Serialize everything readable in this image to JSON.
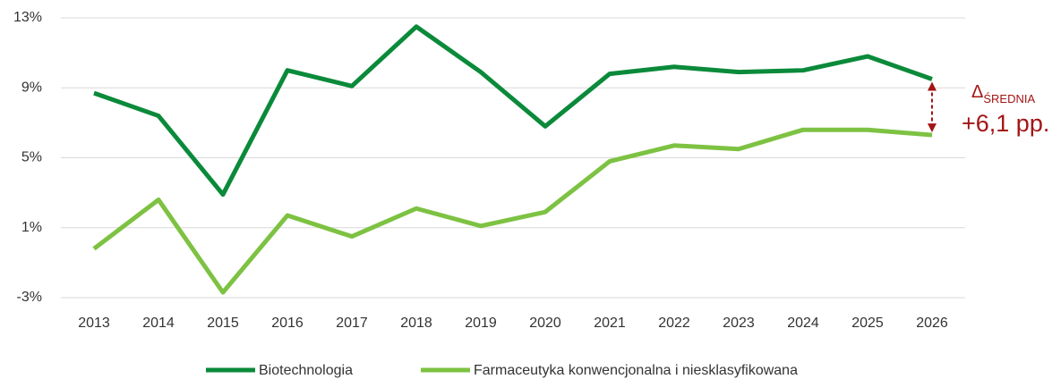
{
  "chart_data": {
    "type": "line",
    "categories": [
      "2013",
      "2014",
      "2015",
      "2016",
      "2017",
      "2018",
      "2019",
      "2020",
      "2021",
      "2022",
      "2023",
      "2024",
      "2025",
      "2026"
    ],
    "series": [
      {
        "name": "Biotechnologia",
        "color": "#0a8a3a",
        "values": [
          8.7,
          7.4,
          2.9,
          10.0,
          9.1,
          12.5,
          9.9,
          6.8,
          9.8,
          10.2,
          9.9,
          10.0,
          10.8,
          9.5
        ]
      },
      {
        "name": "Farmaceutyka konwencjonalna i niesklasyfikowana",
        "color": "#7dc242",
        "values": [
          -0.2,
          2.6,
          -2.7,
          1.7,
          0.5,
          2.1,
          1.1,
          1.9,
          4.8,
          5.7,
          5.5,
          6.6,
          6.6,
          6.3
        ]
      }
    ],
    "ylim": [
      -3,
      13
    ],
    "yticks": [
      {
        "value": -3,
        "label": "-3%"
      },
      {
        "value": 1,
        "label": "1%"
      },
      {
        "value": 5,
        "label": "5%"
      },
      {
        "value": 9,
        "label": "9%"
      },
      {
        "value": 13,
        "label": "13%"
      }
    ],
    "grid": true,
    "legend": "bottom",
    "annotation": {
      "symbol": "Δ",
      "subscript": "ŚREDNIA",
      "text": "+6,1 pp.",
      "color": "#a31515"
    }
  }
}
